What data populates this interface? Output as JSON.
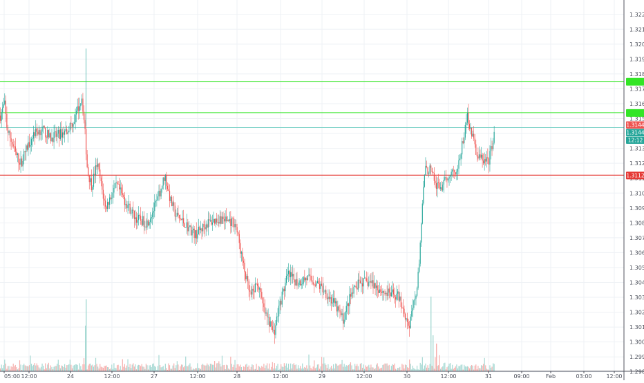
{
  "chart_data": {
    "type": "candlestick",
    "ylim": [
      1.2975,
      1.3225
    ],
    "grid": true,
    "colors": {
      "up": "#26a69a",
      "down": "#ef5350",
      "up_volume": "#a6d9d3",
      "down_volume": "#f6b0ae",
      "grid": "#eef1f5",
      "axis_text": "#4a4e59",
      "axis_line": "#50535e",
      "green_level": "#33e526",
      "red_level": "#e53935",
      "price_line": "#7fd3c9"
    },
    "y_ticks": [
      "1.2980",
      "1.2990",
      "1.3000",
      "1.3010",
      "1.3020",
      "1.3030",
      "1.3040",
      "1.3050",
      "1.3060",
      "1.3070",
      "1.3080",
      "1.3090",
      "1.3100",
      "1.3110",
      "1.3120",
      "1.3130",
      "1.3140",
      "1.3150",
      "1.3160",
      "1.3170",
      "1.3180",
      "1.3190",
      "1.3200",
      "1.3210",
      "1.3220"
    ],
    "x_ticks": [
      "05:00",
      "12:00",
      "24",
      "12:00",
      "27",
      "12:00",
      "28",
      "12:00",
      "29",
      "12:00",
      "30",
      "12:00",
      "31",
      "09:00",
      "Feb",
      "03:00",
      "12:00"
    ],
    "horizontal_levels": [
      {
        "kind": "green",
        "value": 1.3175
      },
      {
        "kind": "green",
        "value": 1.3154
      },
      {
        "kind": "red",
        "value": 1.3112,
        "label": "1.3112"
      }
    ],
    "last_price": {
      "value": 1.3144,
      "label": "1.3144",
      "countdown": "12:12"
    },
    "price_path": [
      1.3152,
      1.316,
      1.3142,
      1.3135,
      1.3126,
      1.312,
      1.3128,
      1.314,
      1.3143,
      1.3137,
      1.3139,
      1.3142,
      1.315,
      1.3165,
      1.3143,
      1.3115,
      1.3105,
      1.312,
      1.309,
      1.3098,
      1.3105,
      1.3095,
      1.3083,
      1.308,
      1.3093,
      1.3112,
      1.3095,
      1.3085,
      1.308,
      1.3072,
      1.308,
      1.3083,
      1.308,
      1.305,
      1.303,
      1.304,
      1.302,
      1.3006,
      1.3025,
      1.3045,
      1.304,
      1.3043,
      1.304,
      1.3035,
      1.3025,
      1.3015,
      1.303,
      1.304,
      1.304,
      1.3033,
      1.3031,
      1.301,
      1.304,
      1.3115,
      1.3116,
      1.3105,
      1.3104,
      1.3114,
      1.3116,
      1.3152,
      1.3125,
      1.312,
      1.3143
    ]
  }
}
